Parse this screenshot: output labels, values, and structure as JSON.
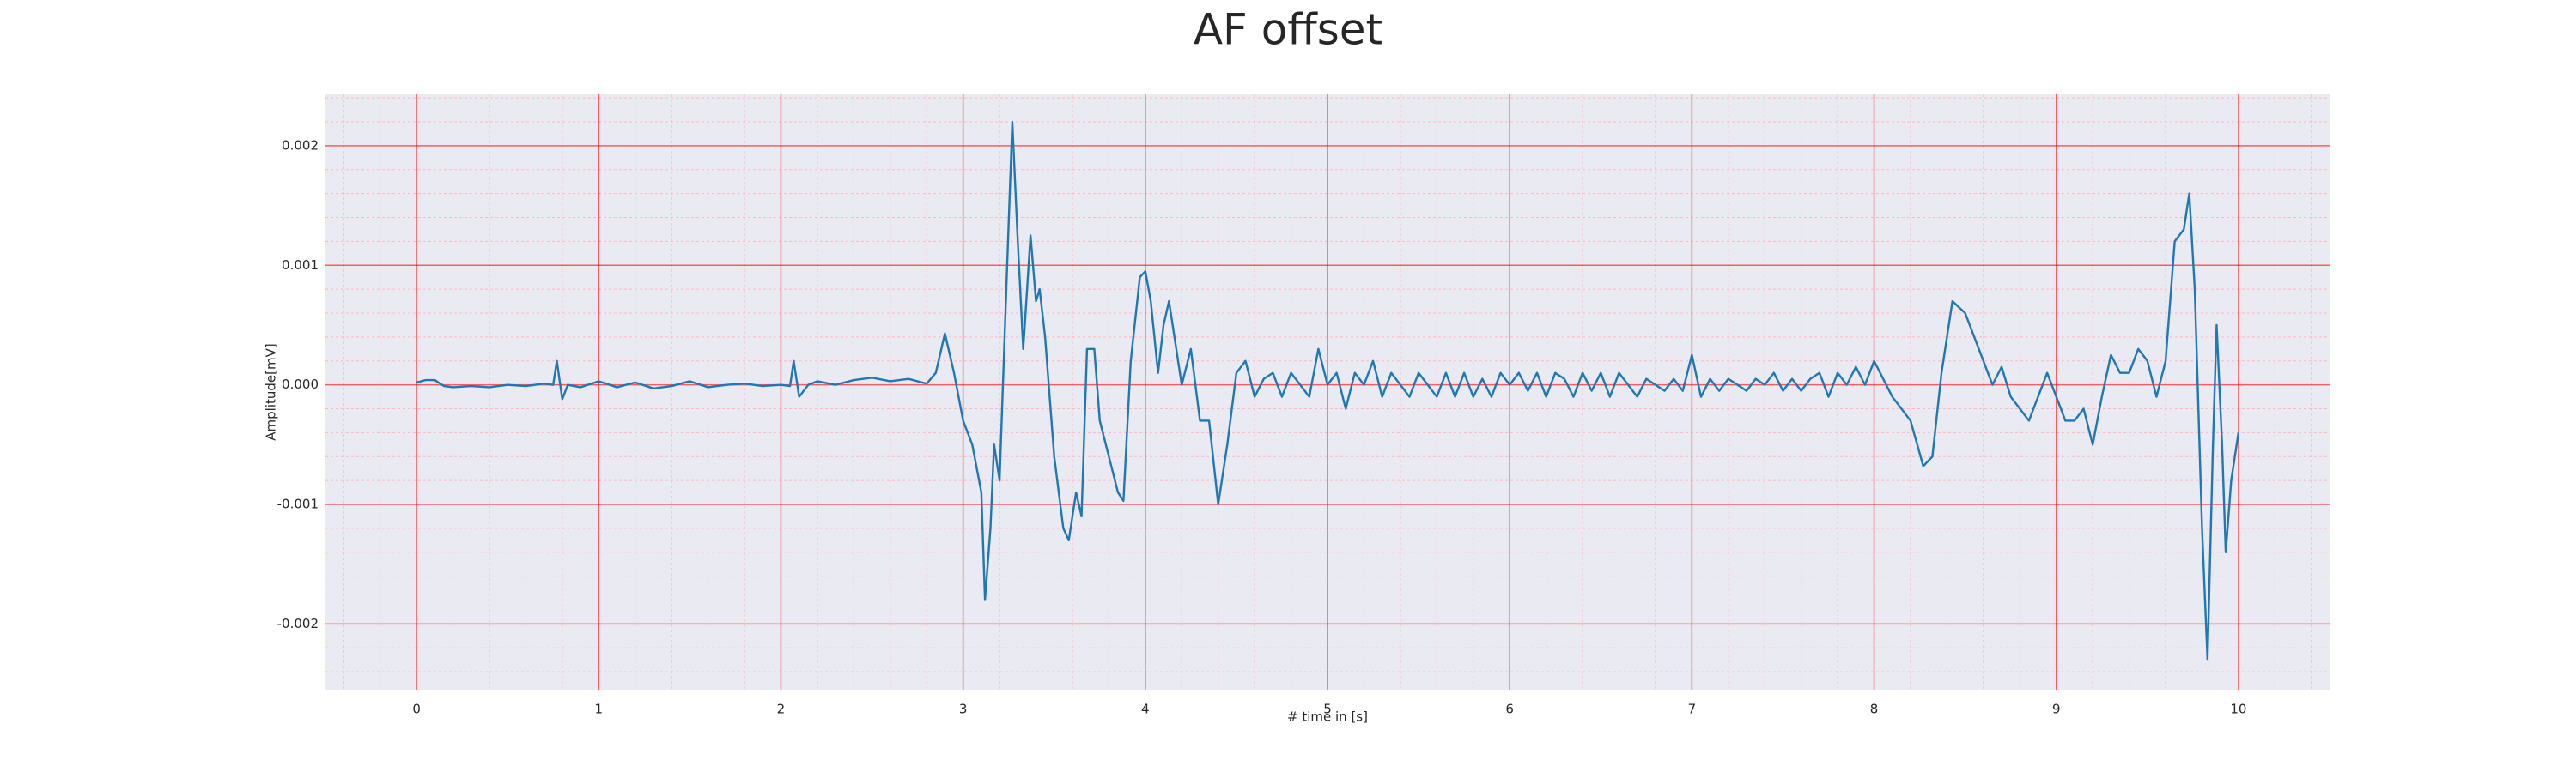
{
  "chart_data": {
    "type": "line",
    "title": "AF offset",
    "xlabel": "# time in [s]",
    "ylabel": "Amplitude[mV]",
    "x": [
      0,
      0.05,
      0.1,
      0.15,
      0.2,
      0.3,
      0.4,
      0.5,
      0.6,
      0.7,
      0.75,
      0.77,
      0.8,
      0.83,
      0.9,
      1.0,
      1.1,
      1.2,
      1.3,
      1.4,
      1.5,
      1.6,
      1.7,
      1.8,
      1.9,
      2.0,
      2.05,
      2.07,
      2.1,
      2.15,
      2.2,
      2.3,
      2.4,
      2.5,
      2.6,
      2.7,
      2.8,
      2.85,
      2.9,
      2.95,
      3.0,
      3.05,
      3.1,
      3.12,
      3.15,
      3.17,
      3.2,
      3.23,
      3.27,
      3.3,
      3.33,
      3.37,
      3.4,
      3.42,
      3.45,
      3.5,
      3.55,
      3.58,
      3.62,
      3.65,
      3.68,
      3.72,
      3.75,
      3.8,
      3.85,
      3.88,
      3.92,
      3.97,
      4.0,
      4.03,
      4.07,
      4.1,
      4.13,
      4.17,
      4.2,
      4.25,
      4.3,
      4.35,
      4.4,
      4.45,
      4.5,
      4.55,
      4.6,
      4.65,
      4.7,
      4.75,
      4.8,
      4.85,
      4.9,
      4.95,
      5.0,
      5.05,
      5.1,
      5.15,
      5.2,
      5.25,
      5.3,
      5.35,
      5.4,
      5.45,
      5.5,
      5.55,
      5.6,
      5.65,
      5.7,
      5.75,
      5.8,
      5.85,
      5.9,
      5.95,
      6.0,
      6.05,
      6.1,
      6.15,
      6.2,
      6.25,
      6.3,
      6.35,
      6.4,
      6.45,
      6.5,
      6.55,
      6.6,
      6.65,
      6.7,
      6.75,
      6.8,
      6.85,
      6.9,
      6.95,
      7.0,
      7.05,
      7.1,
      7.15,
      7.2,
      7.25,
      7.3,
      7.35,
      7.4,
      7.45,
      7.5,
      7.55,
      7.6,
      7.65,
      7.7,
      7.75,
      7.8,
      7.85,
      7.9,
      7.95,
      8.0,
      8.1,
      8.2,
      8.27,
      8.32,
      8.37,
      8.43,
      8.5,
      8.55,
      8.6,
      8.65,
      8.7,
      8.75,
      8.8,
      8.85,
      8.9,
      8.95,
      9.0,
      9.05,
      9.1,
      9.15,
      9.2,
      9.25,
      9.3,
      9.35,
      9.4,
      9.45,
      9.5,
      9.55,
      9.6,
      9.65,
      9.7,
      9.73,
      9.76,
      9.8,
      9.83,
      9.86,
      9.88,
      9.91,
      9.93,
      9.96,
      10.0
    ],
    "series": [
      {
        "name": "AF offset",
        "color": "#1f77b4",
        "values": [
          2e-05,
          4e-05,
          4e-05,
          -1e-05,
          -2e-05,
          -1e-05,
          -2e-05,
          0,
          -1e-05,
          1e-05,
          0,
          0.0002,
          -0.00012,
          0,
          -2e-05,
          3e-05,
          -2e-05,
          2e-05,
          -3e-05,
          -1e-05,
          3e-05,
          -2e-05,
          0,
          1e-05,
          -1e-05,
          0,
          -1e-05,
          0.0002,
          -0.0001,
          0,
          3e-05,
          0,
          4e-05,
          6e-05,
          3e-05,
          5e-05,
          1e-05,
          0.0001,
          0.00043,
          0.0001,
          -0.0003,
          -0.0005,
          -0.0009,
          -0.0018,
          -0.0012,
          -0.0005,
          -0.0008,
          0.0005,
          0.0022,
          0.0012,
          0.0003,
          0.00125,
          0.0007,
          0.0008,
          0.0004,
          -0.0006,
          -0.0012,
          -0.0013,
          -0.0009,
          -0.0011,
          0.0003,
          0.0003,
          -0.0003,
          -0.0006,
          -0.0009,
          -0.00097,
          0.0002,
          0.0009,
          0.00095,
          0.0007,
          0.0001,
          0.0005,
          0.0007,
          0.0003,
          0,
          0.0003,
          -0.0003,
          -0.0003,
          -0.001,
          -0.0005,
          0.0001,
          0.0002,
          -0.0001,
          5e-05,
          0.0001,
          -0.0001,
          0.0001,
          0,
          -0.0001,
          0.0003,
          0,
          0.0001,
          -0.0002,
          0.0001,
          0,
          0.0002,
          -0.0001,
          0.0001,
          0,
          -0.0001,
          0.0001,
          0,
          -0.0001,
          0.0001,
          -0.0001,
          0.0001,
          -0.0001,
          5e-05,
          -0.0001,
          0.0001,
          0,
          0.0001,
          -5e-05,
          0.0001,
          -0.0001,
          0.0001,
          5e-05,
          -0.0001,
          0.0001,
          -5e-05,
          0.0001,
          -0.0001,
          0.0001,
          0,
          -0.0001,
          5e-05,
          0,
          -5e-05,
          5e-05,
          -5e-05,
          0.00025,
          -0.0001,
          5e-05,
          -5e-05,
          5e-05,
          0,
          -5e-05,
          5e-05,
          0,
          0.0001,
          -5e-05,
          5e-05,
          -5e-05,
          5e-05,
          0.0001,
          -0.0001,
          0.0001,
          0,
          0.00015,
          0,
          0.0002,
          -0.0001,
          -0.0003,
          -0.00068,
          -0.0006,
          0.0001,
          0.0007,
          0.0006,
          0.0004,
          0.0002,
          0,
          0.00015,
          -0.0001,
          -0.0002,
          -0.0003,
          -0.0001,
          0.0001,
          -0.0001,
          -0.0003,
          -0.0003,
          -0.0002,
          -0.0005,
          -0.0001,
          0.00025,
          0.0001,
          0.0001,
          0.0003,
          0.0002,
          -0.0001,
          0.0002,
          0.0012,
          0.0013,
          0.0016,
          0.0008,
          -0.0012,
          -0.0023,
          -0.0005,
          0.0005,
          -0.0005,
          -0.0014,
          -0.0008,
          -0.0004
        ]
      }
    ],
    "xlim": [
      -0.5,
      10.5
    ],
    "ylim": [
      -0.00255,
      0.00243
    ],
    "xticks": [
      0,
      1,
      2,
      3,
      4,
      5,
      6,
      7,
      8,
      9,
      10
    ],
    "yticks": [
      -0.002,
      -0.001,
      {
        "value": 0,
        "label": "0.000"
      },
      0.001,
      0.002
    ],
    "grid": true,
    "minor_grid": true,
    "minor_divisions": 5,
    "background": "#eaeaf2",
    "grid_color": "#ff0000",
    "minor_grid_color": "#ffb6c1"
  }
}
